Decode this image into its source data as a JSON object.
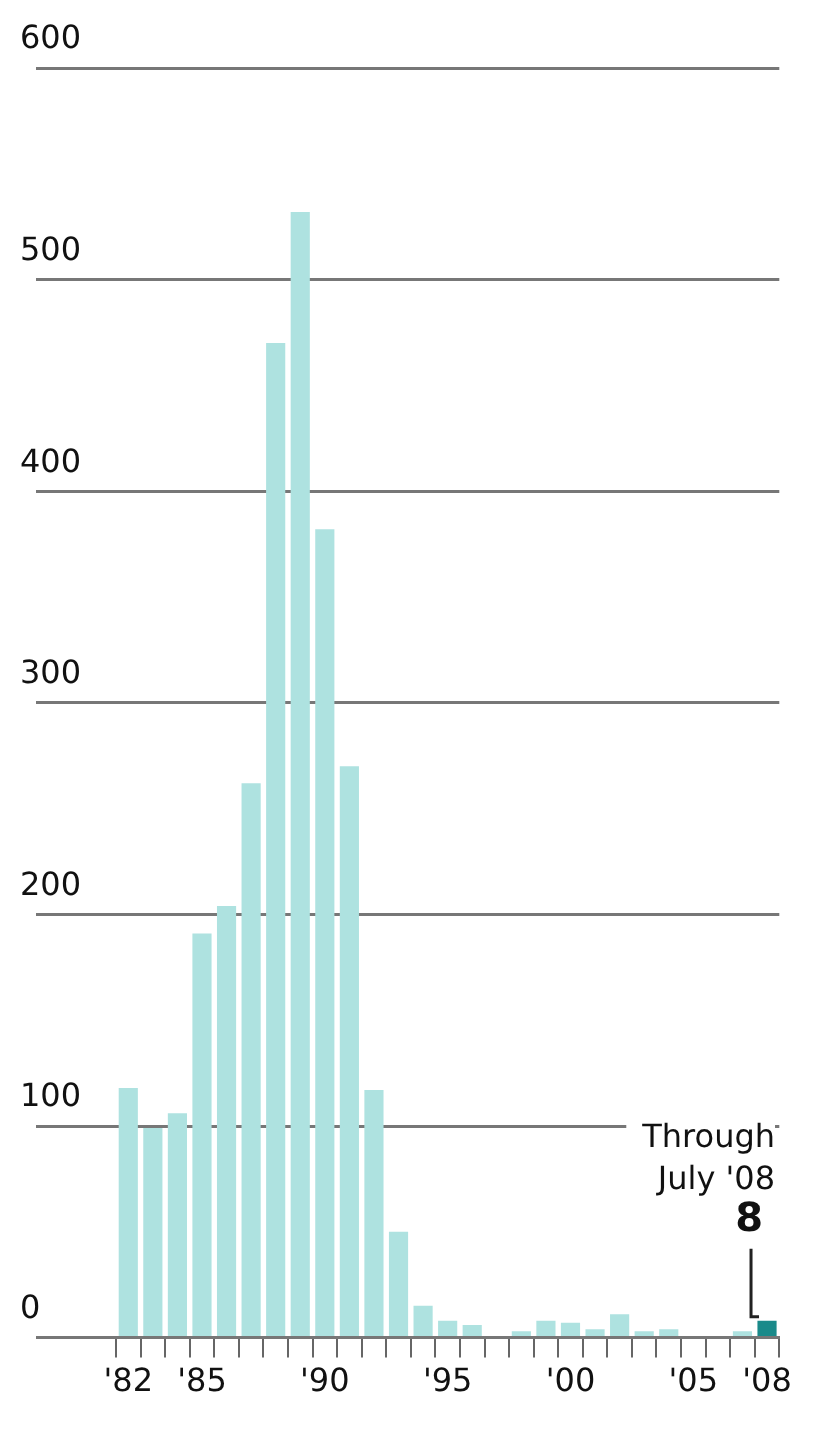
{
  "chart_data": {
    "type": "bar",
    "categories": [
      "'82",
      null,
      null,
      "'85",
      null,
      null,
      null,
      null,
      "'90",
      null,
      null,
      null,
      null,
      "'95",
      null,
      null,
      null,
      null,
      "'00",
      null,
      null,
      null,
      null,
      "'05",
      null,
      null,
      "'08"
    ],
    "values": [
      118,
      99,
      106,
      191,
      204,
      262,
      470,
      532,
      382,
      270,
      117,
      50,
      15,
      8,
      6,
      0,
      3,
      8,
      7,
      4,
      11,
      3,
      4,
      0,
      0,
      3,
      8
    ],
    "colors": [
      "#aee2e0",
      "#aee2e0",
      "#aee2e0",
      "#aee2e0",
      "#aee2e0",
      "#aee2e0",
      "#aee2e0",
      "#aee2e0",
      "#aee2e0",
      "#aee2e0",
      "#aee2e0",
      "#aee2e0",
      "#aee2e0",
      "#aee2e0",
      "#aee2e0",
      "#aee2e0",
      "#aee2e0",
      "#aee2e0",
      "#aee2e0",
      "#aee2e0",
      "#aee2e0",
      "#aee2e0",
      "#aee2e0",
      "#aee2e0",
      "#aee2e0",
      "#aee2e0",
      "#1a8a8a"
    ],
    "value_labels": [
      null,
      null,
      null,
      null,
      null,
      null,
      null,
      null,
      null,
      null,
      null,
      null,
      null,
      null,
      null,
      null,
      null,
      null,
      null,
      null,
      null,
      null,
      null,
      null,
      null,
      null,
      "8"
    ],
    "annotations": [
      "Through July '08"
    ],
    "ylim": [
      0,
      600
    ],
    "yticks": [
      0,
      100,
      200,
      300,
      400,
      500,
      600
    ],
    "grid": "y"
  }
}
